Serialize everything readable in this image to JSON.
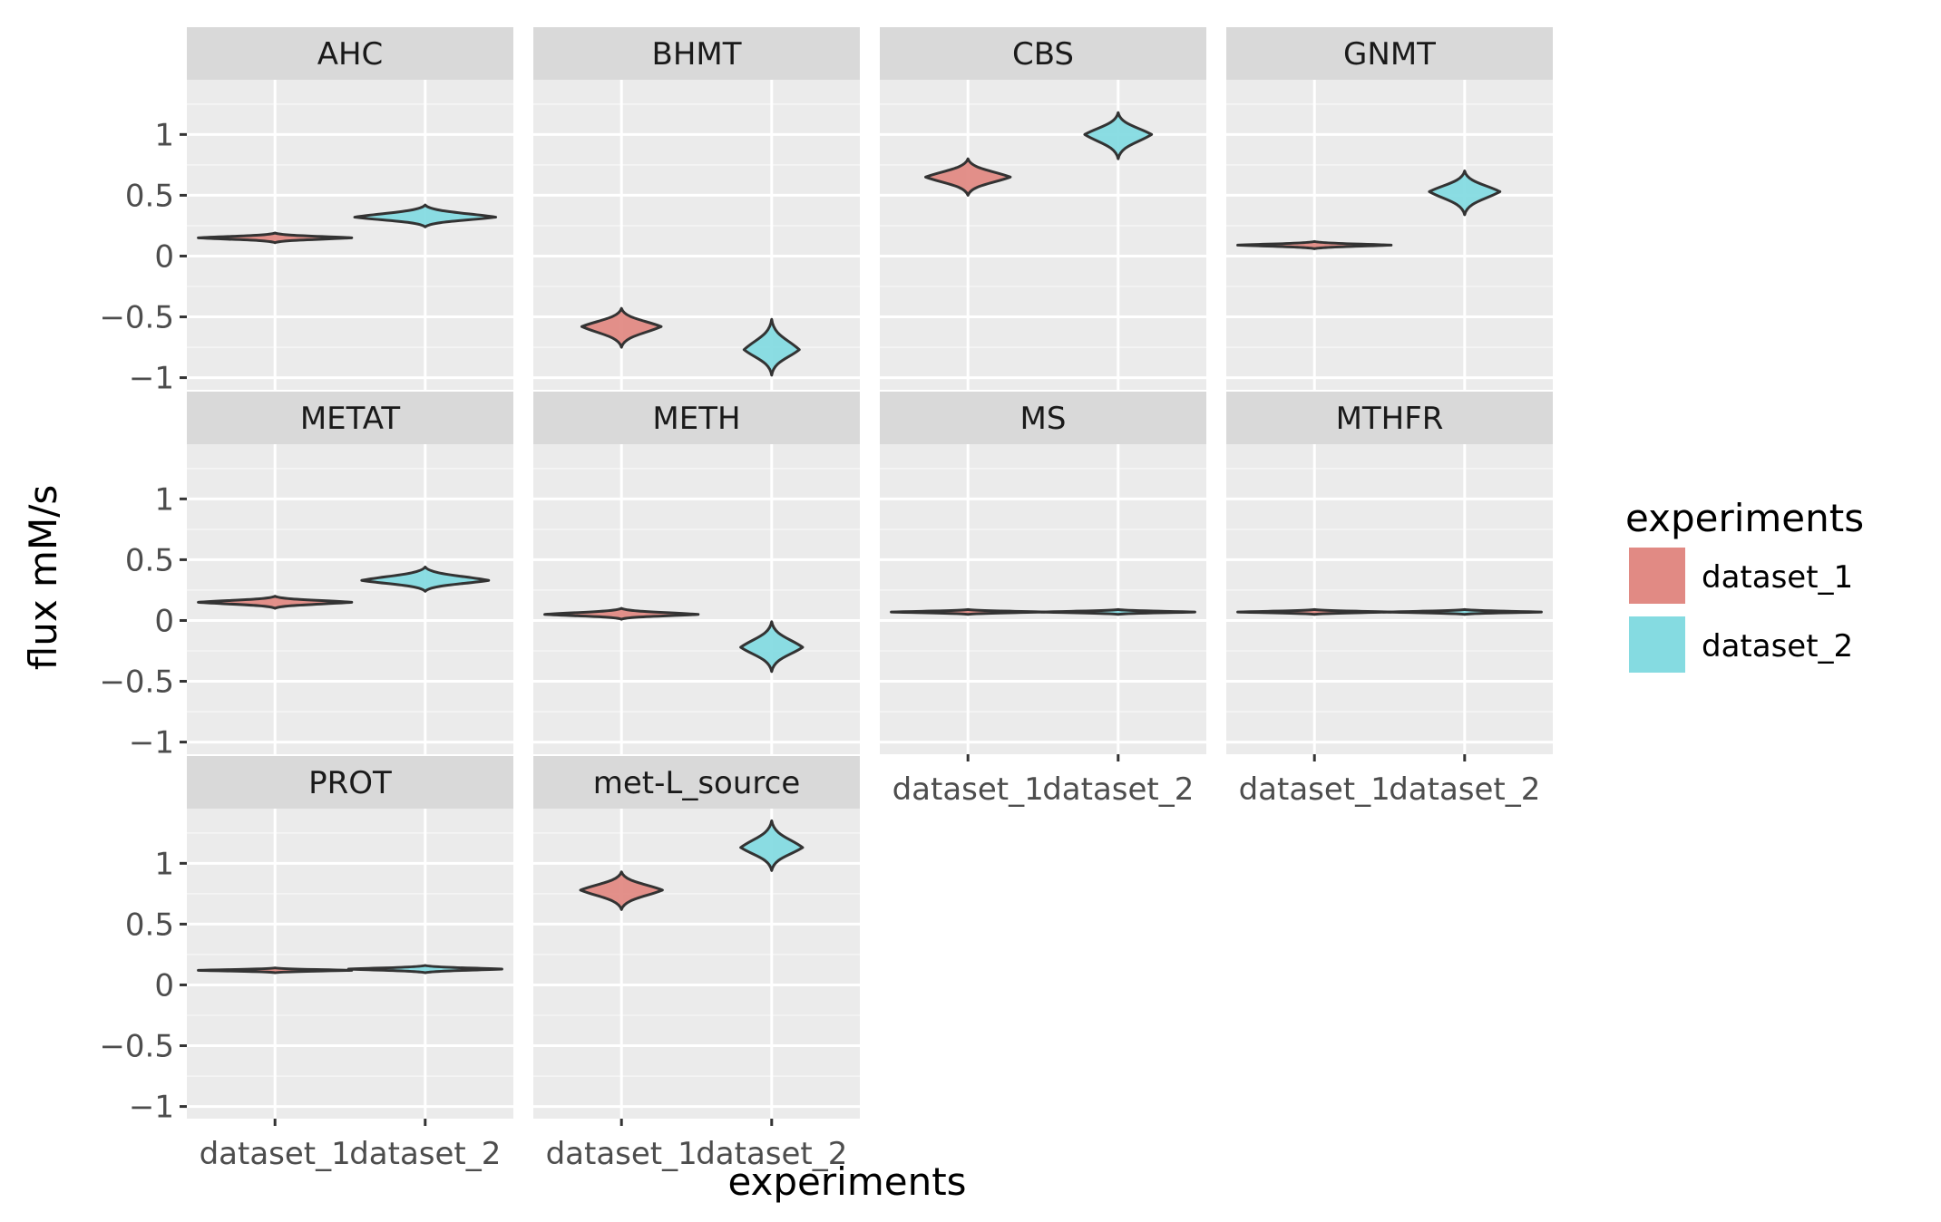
{
  "chart_data": {
    "type": "violin",
    "xlabel": "experiments",
    "ylabel": "flux mM/s",
    "ylim": [
      -1.1,
      1.45
    ],
    "yticks": [
      1,
      0.5,
      0,
      -0.5,
      -1
    ],
    "ytick_labels": [
      "1",
      "0.5",
      "0",
      "−0.5",
      "−1"
    ],
    "categories": [
      "dataset_1",
      "dataset_2"
    ],
    "grid": true,
    "legend": {
      "title": "experiments",
      "position": "right",
      "entries": [
        {
          "label": "dataset_1",
          "color": "#E18A84"
        },
        {
          "label": "dataset_2",
          "color": "#85DBE1"
        }
      ]
    },
    "panels": [
      {
        "name": "AHC",
        "violins": [
          {
            "category": "dataset_1",
            "center": 0.15,
            "min": 0.11,
            "max": 0.19
          },
          {
            "category": "dataset_2",
            "center": 0.32,
            "min": 0.24,
            "max": 0.42
          }
        ]
      },
      {
        "name": "BHMT",
        "violins": [
          {
            "category": "dataset_1",
            "center": -0.58,
            "min": -0.75,
            "max": -0.43
          },
          {
            "category": "dataset_2",
            "center": -0.77,
            "min": -0.98,
            "max": -0.52
          }
        ]
      },
      {
        "name": "CBS",
        "violins": [
          {
            "category": "dataset_1",
            "center": 0.65,
            "min": 0.5,
            "max": 0.8
          },
          {
            "category": "dataset_2",
            "center": 1.0,
            "min": 0.8,
            "max": 1.18
          }
        ]
      },
      {
        "name": "GNMT",
        "violins": [
          {
            "category": "dataset_1",
            "center": 0.09,
            "min": 0.06,
            "max": 0.12
          },
          {
            "category": "dataset_2",
            "center": 0.53,
            "min": 0.34,
            "max": 0.7
          }
        ]
      },
      {
        "name": "METAT",
        "violins": [
          {
            "category": "dataset_1",
            "center": 0.15,
            "min": 0.1,
            "max": 0.2
          },
          {
            "category": "dataset_2",
            "center": 0.33,
            "min": 0.24,
            "max": 0.44
          }
        ]
      },
      {
        "name": "METH",
        "violins": [
          {
            "category": "dataset_1",
            "center": 0.05,
            "min": 0.01,
            "max": 0.1
          },
          {
            "category": "dataset_2",
            "center": -0.22,
            "min": -0.42,
            "max": -0.01
          }
        ]
      },
      {
        "name": "MS",
        "violins": [
          {
            "category": "dataset_1",
            "center": 0.07,
            "min": 0.05,
            "max": 0.09
          },
          {
            "category": "dataset_2",
            "center": 0.07,
            "min": 0.05,
            "max": 0.09
          }
        ]
      },
      {
        "name": "MTHFR",
        "violins": [
          {
            "category": "dataset_1",
            "center": 0.07,
            "min": 0.05,
            "max": 0.09
          },
          {
            "category": "dataset_2",
            "center": 0.07,
            "min": 0.05,
            "max": 0.09
          }
        ]
      },
      {
        "name": "PROT",
        "violins": [
          {
            "category": "dataset_1",
            "center": 0.12,
            "min": 0.1,
            "max": 0.14
          },
          {
            "category": "dataset_2",
            "center": 0.13,
            "min": 0.1,
            "max": 0.16
          }
        ]
      },
      {
        "name": "met-L_source",
        "violins": [
          {
            "category": "dataset_1",
            "center": 0.78,
            "min": 0.62,
            "max": 0.93
          },
          {
            "category": "dataset_2",
            "center": 1.13,
            "min": 0.94,
            "max": 1.35
          }
        ]
      }
    ]
  }
}
